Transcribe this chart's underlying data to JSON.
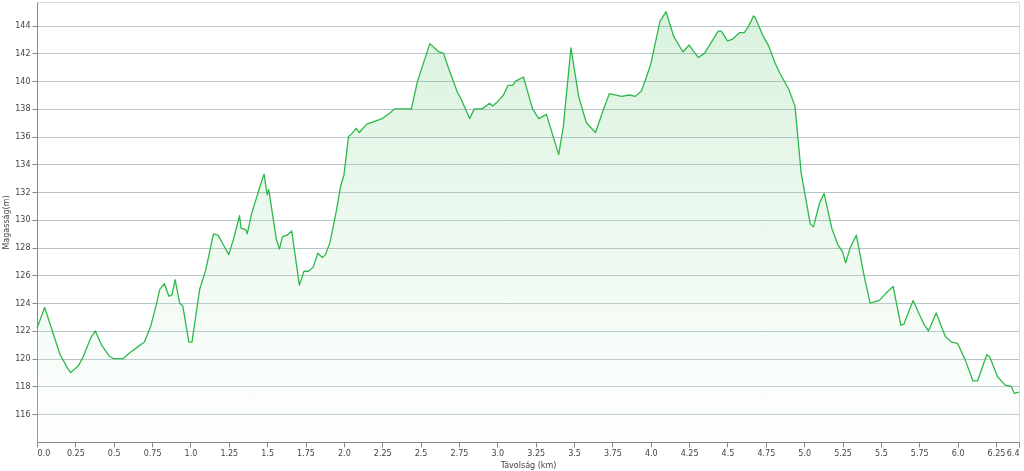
{
  "chart_data": {
    "type": "area",
    "xlabel": "Távolság  (km)",
    "ylabel": "Magasság(m)",
    "x": [
      0.0,
      0.05,
      0.1,
      0.15,
      0.2,
      0.22,
      0.27,
      0.3,
      0.35,
      0.38,
      0.42,
      0.47,
      0.5,
      0.56,
      0.6,
      0.65,
      0.7,
      0.74,
      0.78,
      0.8,
      0.83,
      0.86,
      0.88,
      0.9,
      0.93,
      0.95,
      0.99,
      1.01,
      1.06,
      1.1,
      1.15,
      1.18,
      1.21,
      1.25,
      1.28,
      1.32,
      1.33,
      1.36,
      1.37,
      1.4,
      1.45,
      1.48,
      1.5,
      1.51,
      1.52,
      1.56,
      1.58,
      1.6,
      1.63,
      1.66,
      1.71,
      1.74,
      1.77,
      1.8,
      1.83,
      1.86,
      1.88,
      1.91,
      1.95,
      1.98,
      2.0,
      2.03,
      2.05,
      2.08,
      2.1,
      2.15,
      2.2,
      2.25,
      2.3,
      2.33,
      2.44,
      2.48,
      2.56,
      2.6,
      2.62,
      2.65,
      2.68,
      2.74,
      2.76,
      2.82,
      2.85,
      2.9,
      2.95,
      2.97,
      3.0,
      3.04,
      3.07,
      3.1,
      3.12,
      3.17,
      3.23,
      3.27,
      3.32,
      3.4,
      3.43,
      3.48,
      3.53,
      3.58,
      3.64,
      3.69,
      3.73,
      3.81,
      3.86,
      3.9,
      3.94,
      4.0,
      4.06,
      4.1,
      4.15,
      4.21,
      4.25,
      4.31,
      4.35,
      4.44,
      4.46,
      4.5,
      4.53,
      4.58,
      4.61,
      4.64,
      4.67,
      4.68,
      4.73,
      4.77,
      4.81,
      4.84,
      4.9,
      4.94,
      4.98,
      5.04,
      5.06,
      5.1,
      5.13,
      5.18,
      5.22,
      5.25,
      5.27,
      5.3,
      5.34,
      5.39,
      5.43,
      5.49,
      5.54,
      5.58,
      5.63,
      5.65,
      5.71,
      5.75,
      5.78,
      5.81,
      5.86,
      5.92,
      5.96,
      6.0,
      6.05,
      6.1,
      6.13,
      6.19,
      6.21,
      6.26,
      6.31,
      6.35,
      6.37,
      6.4
    ],
    "series": [
      {
        "color": "#2eb84a",
        "values": [
          122.2,
          123.7,
          122.0,
          120.3,
          119.3,
          119.0,
          119.5,
          120.1,
          121.5,
          122.0,
          121.0,
          120.2,
          120.0,
          120.0,
          120.4,
          120.8,
          121.2,
          122.3,
          124.0,
          125.0,
          125.4,
          124.5,
          124.6,
          125.7,
          124.0,
          123.8,
          121.2,
          121.2,
          125.0,
          126.4,
          129.0,
          128.9,
          128.3,
          127.5,
          128.6,
          130.3,
          129.4,
          129.3,
          129.0,
          130.5,
          132.3,
          133.3,
          131.8,
          132.2,
          131.5,
          128.6,
          127.9,
          128.8,
          128.9,
          129.2,
          125.3,
          126.3,
          126.3,
          126.6,
          127.6,
          127.3,
          127.5,
          128.4,
          130.6,
          132.5,
          133.2,
          136.0,
          136.2,
          136.6,
          136.3,
          136.9,
          137.1,
          137.3,
          137.7,
          138.0,
          138.0,
          140.0,
          142.7,
          142.3,
          142.1,
          142.0,
          141.0,
          139.2,
          138.8,
          137.3,
          138.0,
          138.0,
          138.4,
          138.2,
          138.5,
          139.0,
          139.7,
          139.7,
          140.0,
          140.3,
          138.0,
          137.3,
          137.6,
          134.7,
          136.7,
          142.4,
          138.9,
          137.0,
          136.3,
          137.9,
          139.1,
          138.9,
          139.0,
          138.9,
          139.3,
          141.2,
          144.3,
          145.0,
          143.2,
          142.1,
          142.6,
          141.7,
          142.0,
          143.6,
          143.6,
          142.9,
          143.0,
          143.5,
          143.5,
          144.0,
          144.7,
          144.6,
          143.3,
          142.5,
          141.3,
          140.6,
          139.4,
          138.2,
          133.4,
          129.7,
          129.5,
          131.2,
          131.9,
          129.4,
          128.2,
          127.7,
          126.9,
          128.0,
          128.9,
          126.0,
          124.0,
          124.2,
          124.8,
          125.2,
          122.4,
          122.5,
          124.2,
          123.2,
          122.5,
          122.0,
          123.3,
          121.6,
          121.2,
          121.1,
          119.9,
          118.4,
          118.4,
          120.3,
          120.1,
          118.7,
          118.1,
          118.0,
          117.5,
          117.6
        ]
      }
    ],
    "xlim": [
      0,
      6.4
    ],
    "xticks": [
      {
        "value": 0,
        "label": "0.0"
      },
      0.25,
      0.5,
      0.75,
      {
        "value": 1,
        "label": "1.0"
      },
      1.25,
      1.5,
      1.75,
      {
        "value": 2,
        "label": "2.0"
      },
      2.25,
      2.5,
      2.75,
      {
        "value": 3,
        "label": "3.0"
      },
      3.25,
      3.5,
      3.75,
      {
        "value": 4,
        "label": "4.0"
      },
      4.25,
      4.5,
      4.75,
      {
        "value": 5,
        "label": "5.0"
      },
      5.25,
      5.5,
      5.75,
      {
        "value": 6,
        "label": "6.0"
      },
      6.25,
      6.4
    ],
    "ylim": [
      114,
      145.7
    ],
    "yticks": [
      116,
      118,
      120,
      122,
      124,
      126,
      128,
      130,
      132,
      134,
      136,
      138,
      140,
      142,
      144
    ],
    "grid": "y",
    "marker": "none",
    "line_style": "solid"
  }
}
